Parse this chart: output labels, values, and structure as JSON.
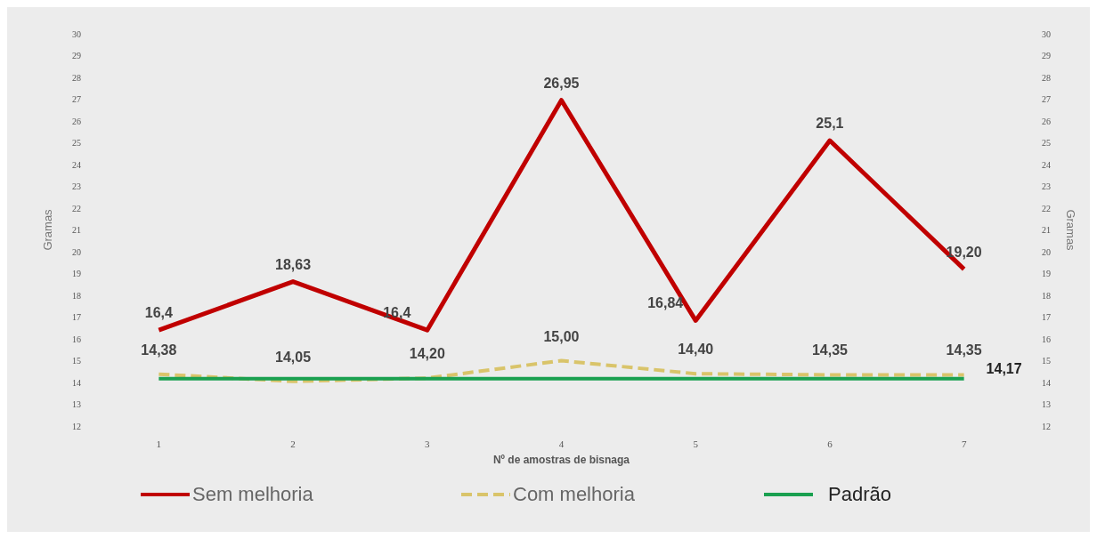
{
  "chart_data": {
    "type": "line",
    "xlabel": "Nº de amostras de bisnaga",
    "ylabel": "Gramas",
    "y2label": "Gramas",
    "categories": [
      "1",
      "2",
      "3",
      "4",
      "5",
      "6",
      "7"
    ],
    "ylim": [
      12,
      30
    ],
    "yticks": [
      12,
      13,
      14,
      15,
      16,
      17,
      18,
      19,
      20,
      21,
      22,
      23,
      24,
      25,
      26,
      27,
      28,
      29,
      30
    ],
    "y2lim": [
      12,
      30
    ],
    "y2ticks": [
      12,
      13,
      14,
      15,
      16,
      17,
      18,
      19,
      20,
      21,
      22,
      23,
      24,
      25,
      26,
      27,
      28,
      29,
      30
    ],
    "grid": false,
    "legend": "bottom",
    "series": [
      {
        "name": "Sem melhoria",
        "color": "#c00000",
        "line_style": "solid",
        "values": [
          16.4,
          18.63,
          16.4,
          26.95,
          16.84,
          25.1,
          19.2
        ],
        "value_labels": [
          "16,4",
          "18,63",
          "16,4",
          "26,95",
          "16,84",
          "25,1",
          "19,20"
        ]
      },
      {
        "name": "Com melhoria",
        "color": "#d9c46a",
        "line_style": "dashed",
        "values": [
          14.38,
          14.05,
          14.2,
          15.0,
          14.4,
          14.35,
          14.35
        ],
        "value_labels": [
          "14,38",
          "14,05",
          "14,20",
          "15,00",
          "14,40",
          "14,35",
          "14,35"
        ]
      },
      {
        "name": "Padrão",
        "color": "#1aa050",
        "line_style": "solid",
        "values": [
          14.17,
          14.17,
          14.17,
          14.17,
          14.17,
          14.17,
          14.17
        ],
        "value_labels": [
          null,
          null,
          null,
          null,
          null,
          null,
          "14,17"
        ]
      }
    ]
  }
}
